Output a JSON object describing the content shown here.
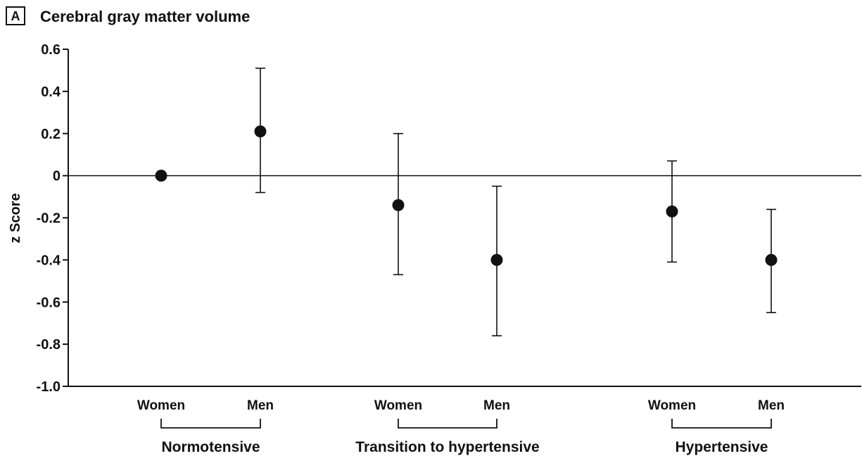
{
  "panel_label": "A",
  "chart_data": {
    "type": "scatter",
    "title": "Cerebral gray matter volume",
    "ylabel": "z Score",
    "xlabel": "",
    "ylim": [
      -1.0,
      0.6
    ],
    "yticks": [
      0.6,
      0.4,
      0.2,
      0,
      -0.2,
      -0.4,
      -0.6,
      -0.8,
      -1.0
    ],
    "ytick_labels": [
      "0.6",
      "0.4",
      "0.2",
      "0",
      "-0.2",
      "-0.4",
      "-0.6",
      "-0.8",
      "-1.0"
    ],
    "reference_line": 0,
    "grid": false,
    "groups": [
      {
        "label": "Normotensive",
        "points": [
          {
            "category": "Women",
            "value": 0,
            "ci_low": 0,
            "ci_high": 0
          },
          {
            "category": "Men",
            "value": 0.21,
            "ci_low": -0.08,
            "ci_high": 0.51
          }
        ]
      },
      {
        "label": "Transition to hypertensive",
        "points": [
          {
            "category": "Women",
            "value": -0.14,
            "ci_low": -0.47,
            "ci_high": 0.2
          },
          {
            "category": "Men",
            "value": -0.4,
            "ci_low": -0.76,
            "ci_high": -0.05
          }
        ]
      },
      {
        "label": "Hypertensive",
        "points": [
          {
            "category": "Women",
            "value": -0.17,
            "ci_low": -0.41,
            "ci_high": 0.07
          },
          {
            "category": "Men",
            "value": -0.4,
            "ci_low": -0.65,
            "ci_high": -0.16
          }
        ]
      }
    ]
  }
}
